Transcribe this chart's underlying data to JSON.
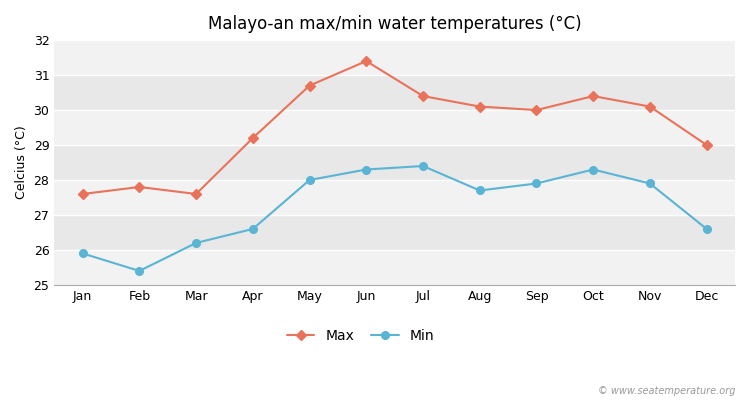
{
  "title": "Malayo-an max/min water temperatures (°C)",
  "ylabel": "Celcius (°C)",
  "months": [
    "Jan",
    "Feb",
    "Mar",
    "Apr",
    "May",
    "Jun",
    "Jul",
    "Aug",
    "Sep",
    "Oct",
    "Nov",
    "Dec"
  ],
  "max_temps": [
    27.6,
    27.8,
    27.6,
    29.2,
    30.7,
    31.4,
    30.4,
    30.1,
    30.0,
    30.4,
    30.1,
    29.0
  ],
  "min_temps": [
    25.9,
    25.4,
    26.2,
    26.6,
    28.0,
    28.3,
    28.4,
    27.7,
    27.9,
    28.3,
    27.9,
    26.6
  ],
  "max_color": "#e8735a",
  "min_color": "#5ab4d4",
  "figure_bg": "#ffffff",
  "plot_bg_dark": "#e8e8e8",
  "plot_bg_light": "#f2f2f2",
  "grid_color": "#ffffff",
  "ylim": [
    25,
    32
  ],
  "yticks": [
    25,
    26,
    27,
    28,
    29,
    30,
    31,
    32
  ],
  "legend_labels": [
    "Max",
    "Min"
  ],
  "watermark": "© www.seatemperature.org",
  "title_fontsize": 12,
  "axis_fontsize": 9,
  "tick_fontsize": 9,
  "legend_fontsize": 10
}
